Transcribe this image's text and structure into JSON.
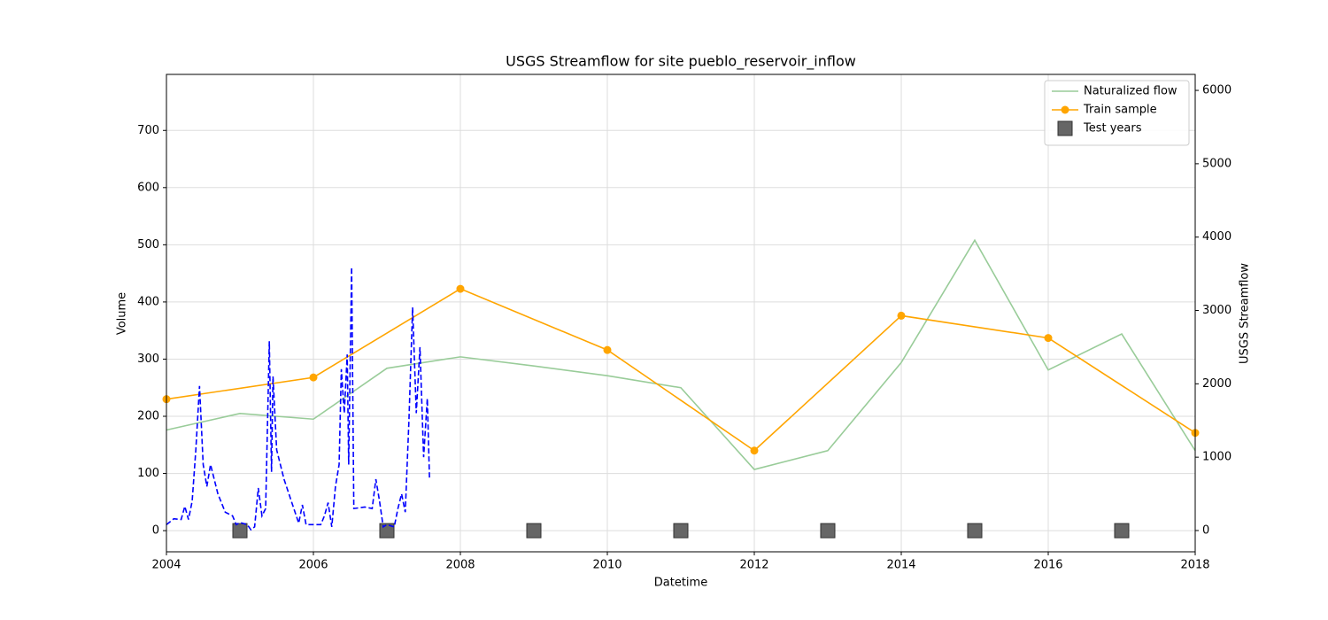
{
  "chart_data": {
    "type": "line",
    "title": "USGS Streamflow for site pueblo_reservoir_inflow",
    "xlabel": "Datetime",
    "ylabel": "Volume",
    "y2label": "USGS Streamflow",
    "xlim": [
      2004,
      2018
    ],
    "xticks": [
      2004,
      2006,
      2008,
      2010,
      2012,
      2014,
      2016,
      2018
    ],
    "ylim": [
      -37,
      798
    ],
    "yticks": [
      0,
      100,
      200,
      300,
      400,
      500,
      600,
      700
    ],
    "y2lim": [
      -290,
      6218
    ],
    "y2ticks": [
      0,
      1000,
      2000,
      3000,
      4000,
      5000,
      6000
    ],
    "grid": true,
    "legend": "upper right",
    "series": [
      {
        "name": "Naturalized flow",
        "color": "#99cc99",
        "style": "line",
        "x": [
          2004,
          2005,
          2006,
          2007,
          2008,
          2009,
          2010,
          2011,
          2012,
          2013,
          2014,
          2015,
          2016,
          2017,
          2018
        ],
        "values": [
          176,
          205,
          195,
          284,
          304,
          288,
          271,
          250,
          107,
          140,
          294,
          508,
          281,
          344,
          140
        ]
      },
      {
        "name": "Train sample",
        "color": "#ffa500",
        "style": "line-marker",
        "x": [
          2004,
          2006,
          2008,
          2010,
          2012,
          2014,
          2016,
          2018
        ],
        "values": [
          230,
          268,
          423,
          316,
          140,
          376,
          337,
          171
        ]
      },
      {
        "name": "Test years",
        "color": "#666666",
        "style": "square",
        "x": [
          2005,
          2007,
          2009,
          2011,
          2013,
          2015,
          2017
        ],
        "values": [
          0,
          0,
          0,
          0,
          0,
          0,
          0
        ]
      },
      {
        "color": "#0000ff",
        "style": "dashed",
        "axis": "y2",
        "x": [
          2004.0,
          2004.1,
          2004.2,
          2004.25,
          2004.3,
          2004.35,
          2004.4,
          2004.45,
          2004.5,
          2004.55,
          2004.6,
          2004.7,
          2004.8,
          2004.9,
          2004.95,
          2005.0,
          2005.1,
          2005.15,
          2005.2,
          2005.25,
          2005.3,
          2005.35,
          2005.4,
          2005.43,
          2005.45,
          2005.5,
          2005.55,
          2005.6,
          2005.7,
          2005.8,
          2005.85,
          2005.9,
          2006.1,
          2006.15,
          2006.2,
          2006.25,
          2006.3,
          2006.35,
          2006.38,
          2006.42,
          2006.46,
          2006.48,
          2006.52,
          2006.55,
          2006.7,
          2006.8,
          2006.85,
          2006.9,
          2006.95,
          2007.0,
          2007.1,
          2007.15,
          2007.2,
          2007.25,
          2007.3,
          2007.35,
          2007.4,
          2007.45,
          2007.5,
          2007.55,
          2007.58
        ],
        "values": [
          80,
          160,
          150,
          330,
          150,
          400,
          1100,
          1970,
          900,
          600,
          900,
          500,
          250,
          200,
          80,
          110,
          80,
          10,
          50,
          580,
          200,
          300,
          2580,
          800,
          2100,
          1100,
          900,
          700,
          400,
          100,
          350,
          80,
          80,
          200,
          380,
          50,
          600,
          900,
          2200,
          1600,
          2400,
          900,
          3590,
          300,
          320,
          300,
          700,
          400,
          50,
          80,
          50,
          300,
          500,
          250,
          1500,
          3040,
          1600,
          2500,
          1000,
          1800,
          700
        ]
      }
    ]
  }
}
